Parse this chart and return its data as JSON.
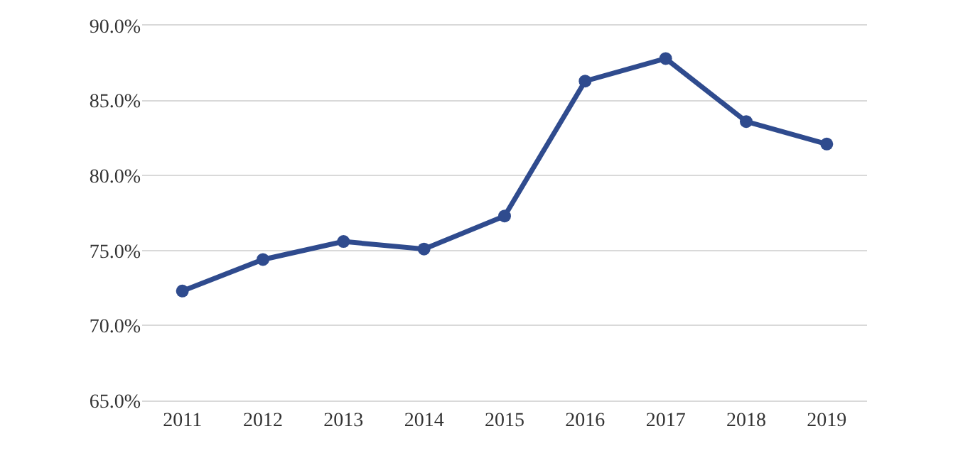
{
  "chart_data": {
    "type": "line",
    "categories": [
      "2011",
      "2012",
      "2013",
      "2014",
      "2015",
      "2016",
      "2017",
      "2018",
      "2019"
    ],
    "series": [
      {
        "color": "#2f4b8e",
        "values": [
          72.3,
          74.4,
          75.6,
          75.1,
          77.3,
          86.3,
          87.8,
          83.6,
          82.1
        ]
      }
    ],
    "ylim": [
      65,
      90
    ],
    "yticks": [
      {
        "value": 65,
        "label": "65.0%"
      },
      {
        "value": 70,
        "label": "70.0%"
      },
      {
        "value": 75,
        "label": "75.0%"
      },
      {
        "value": 80,
        "label": "80.0%"
      },
      {
        "value": 85,
        "label": "85.0%"
      },
      {
        "value": 90,
        "label": "90.0%"
      }
    ],
    "grid": "y",
    "marker": "circle",
    "line_style": "solid"
  }
}
